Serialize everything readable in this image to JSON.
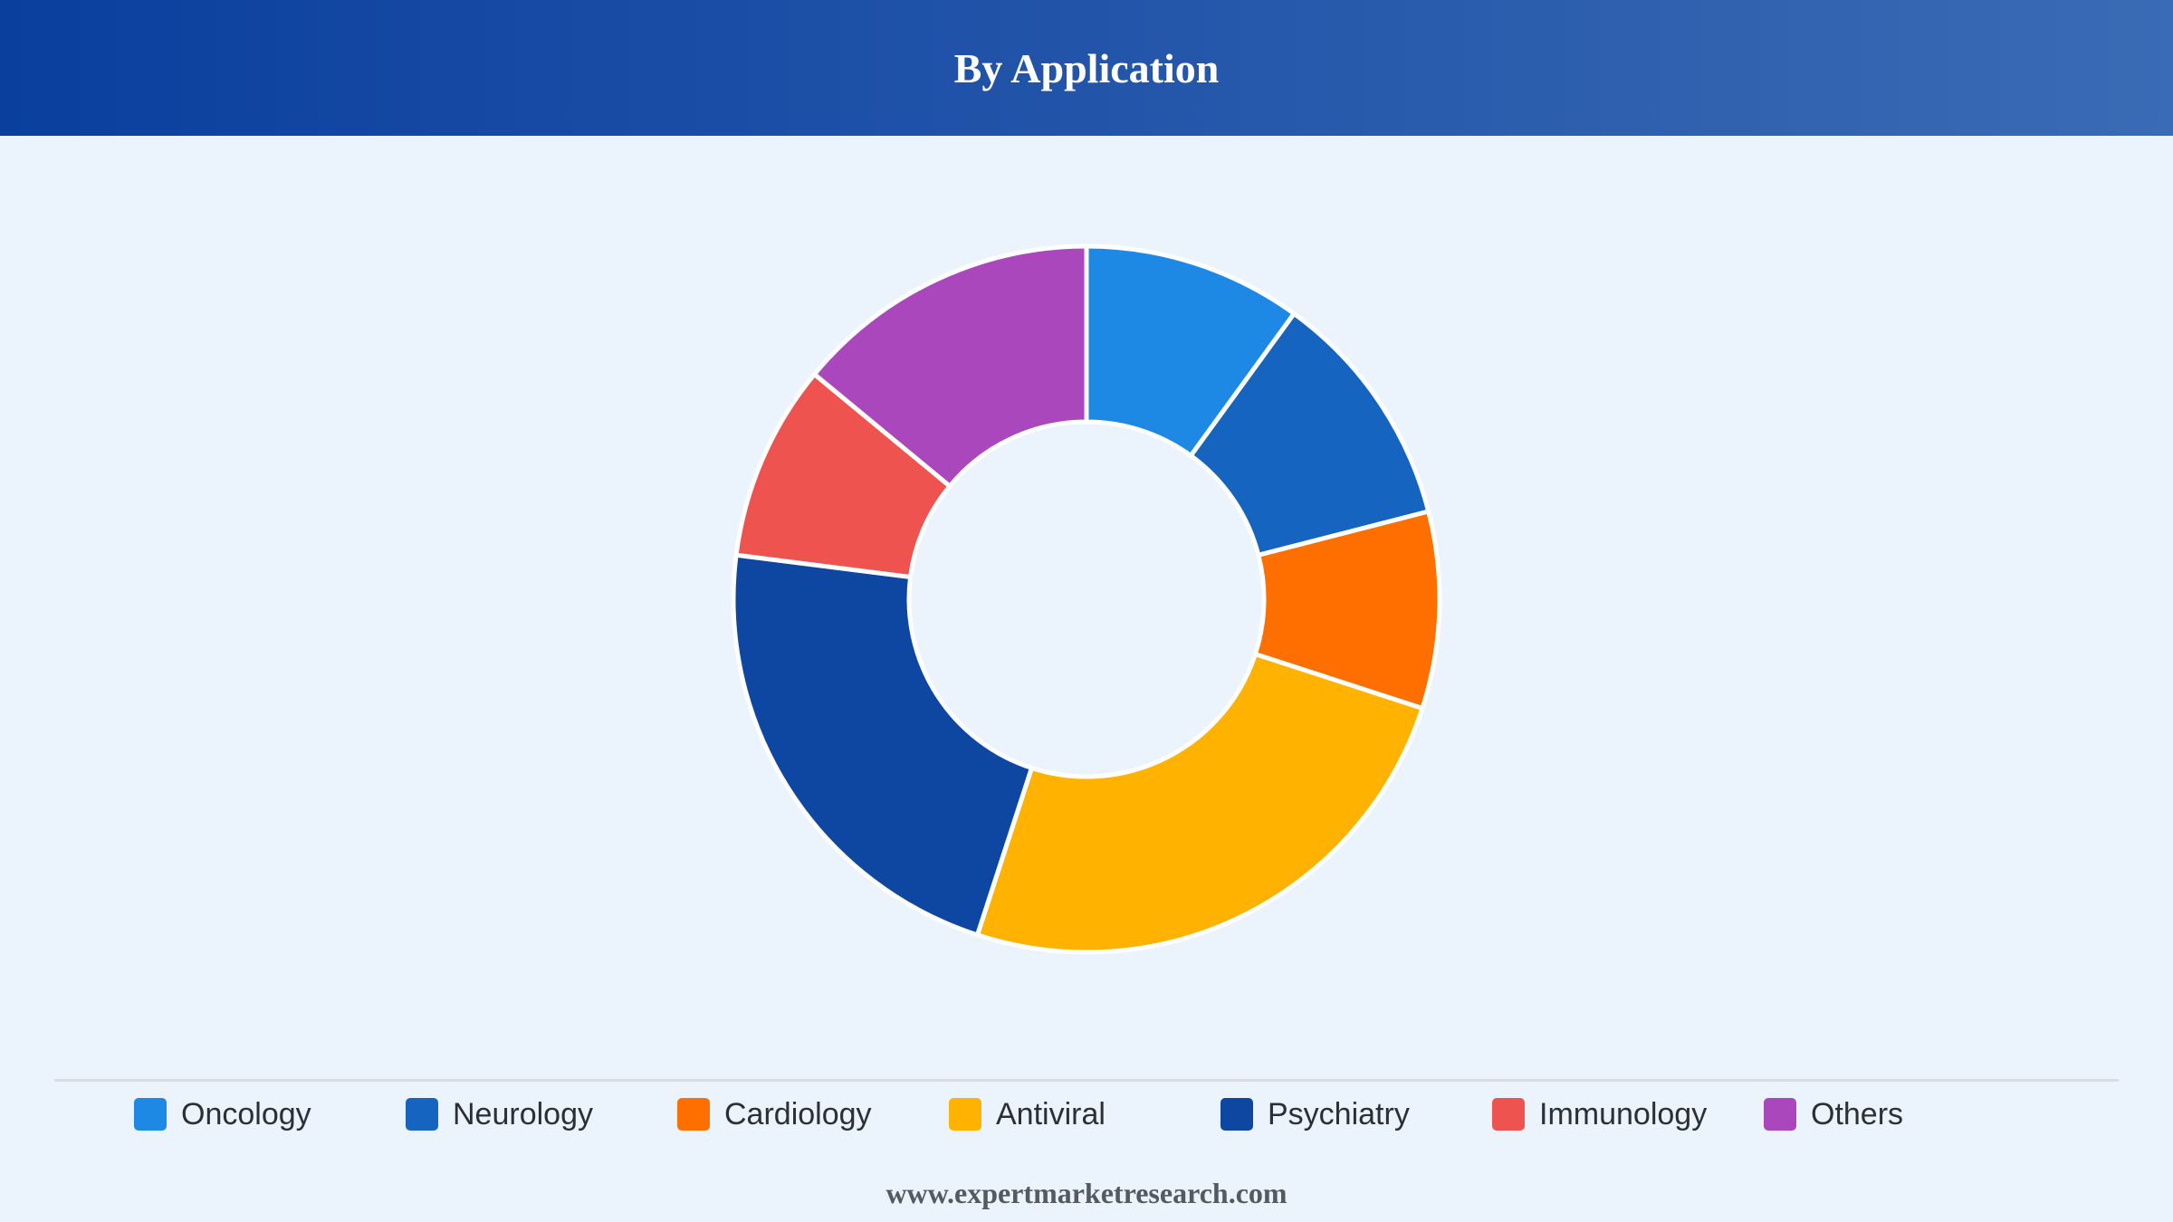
{
  "header": {
    "title": "By Application"
  },
  "chart_data": {
    "type": "pie",
    "variant": "donut",
    "title": "By Application",
    "categories": [
      "Oncology",
      "Neurology",
      "Cardiology",
      "Antiviral",
      "Psychiatry",
      "Immunology",
      "Others"
    ],
    "values": [
      10,
      11,
      9,
      25,
      22,
      9,
      14
    ],
    "unit": "%",
    "colors": [
      "#1e88e5",
      "#1565c0",
      "#ff6f00",
      "#ffb300",
      "#0d47a1",
      "#ef5350",
      "#ab47bc"
    ],
    "start_angle": "12 o'clock",
    "direction": "clockwise",
    "legend_position": "bottom"
  },
  "footer": {
    "text": "www.expertmarketresearch.com"
  }
}
